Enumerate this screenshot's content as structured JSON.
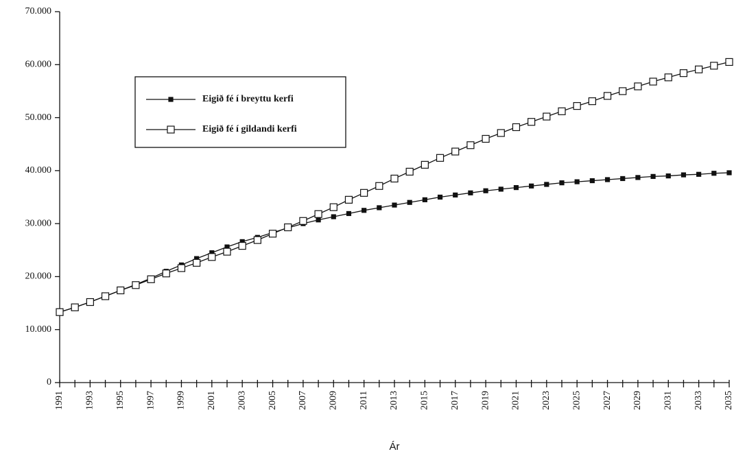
{
  "chart_data": {
    "type": "line",
    "x_label": "Ár",
    "categories": [
      "1991",
      null,
      "1993",
      null,
      "1995",
      null,
      "1997",
      null,
      "1999",
      null,
      "2001",
      null,
      "2003",
      null,
      "2005",
      null,
      "2007",
      null,
      "2009",
      null,
      "2011",
      null,
      "2013",
      null,
      "2015",
      null,
      "2017",
      null,
      "2019",
      null,
      "2021",
      null,
      "2023",
      null,
      "2025",
      null,
      "2027",
      null,
      "2029",
      null,
      "2031",
      null,
      "2033",
      null,
      "2035"
    ],
    "series": [
      {
        "name": "Eigið fé í breyttu kerfi",
        "color": "#111111",
        "marker": "filled-square",
        "values": [
          13300,
          14200,
          15200,
          16300,
          17400,
          18500,
          19700,
          21000,
          22200,
          23400,
          24500,
          25600,
          26600,
          27400,
          28300,
          29200,
          30000,
          30700,
          31300,
          31900,
          32500,
          33000,
          33500,
          34000,
          34500,
          35000,
          35400,
          35800,
          36200,
          36500,
          36800,
          37100,
          37400,
          37700,
          37900,
          38100,
          38300,
          38500,
          38700,
          38900,
          39000,
          39200,
          39300,
          39500,
          39600
        ]
      },
      {
        "name": "Eigið fé í gildandi kerfi",
        "color": "#111111",
        "marker": "open-square",
        "values": [
          13300,
          14200,
          15200,
          16300,
          17400,
          18400,
          19500,
          20600,
          21600,
          22600,
          23700,
          24700,
          25800,
          26900,
          28100,
          29300,
          30500,
          31800,
          33100,
          34500,
          35800,
          37100,
          38500,
          39800,
          41100,
          42400,
          43600,
          44800,
          46000,
          47100,
          48200,
          49200,
          50200,
          51200,
          52200,
          53100,
          54100,
          55000,
          55900,
          56800,
          57600,
          58400,
          59100,
          59800,
          60500
        ]
      }
    ],
    "ylim": [
      0,
      70000
    ],
    "yticks": [
      0,
      {
        "value": 10000,
        "label": "10.000"
      },
      {
        "value": 20000,
        "label": "20.000"
      },
      {
        "value": 30000,
        "label": "30.000"
      },
      {
        "value": 40000,
        "label": "40.000"
      },
      {
        "value": 50000,
        "label": "50.000"
      },
      {
        "value": 60000,
        "label": "60.000"
      },
      {
        "value": 70000,
        "label": "70.000"
      }
    ],
    "grid": false,
    "legend": "upper-left"
  }
}
